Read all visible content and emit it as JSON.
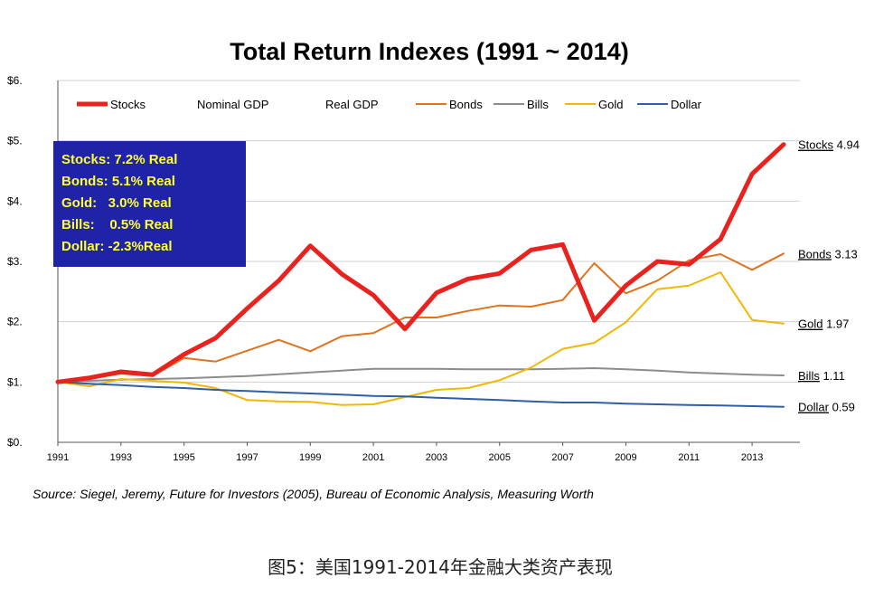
{
  "chart_data": {
    "type": "line",
    "title": "Total Return Indexes (1991 ~ 2014)",
    "y_ticks": [
      "$0.",
      "$1.",
      "$2.",
      "$3.",
      "$4.",
      "$5.",
      "$6."
    ],
    "ylim": [
      0,
      6
    ],
    "x_ticks": [
      "1991",
      "1993",
      "1995",
      "1997",
      "1999",
      "2001",
      "2003",
      "2005",
      "2007",
      "2009",
      "2011",
      "2013"
    ],
    "x": [
      1991,
      1992,
      1993,
      1994,
      1995,
      1996,
      1997,
      1998,
      1999,
      2000,
      2001,
      2002,
      2003,
      2004,
      2005,
      2006,
      2007,
      2008,
      2009,
      2010,
      2011,
      2012,
      2013,
      2014
    ],
    "xlim": [
      1991,
      2014
    ],
    "grid": "horizontal",
    "legend_position": "top",
    "legend": [
      {
        "name": "Stocks",
        "color": "#e8231f",
        "has_line": true
      },
      {
        "name": "Nominal GDP",
        "color": "",
        "has_line": false
      },
      {
        "name": "Real GDP",
        "color": "",
        "has_line": false
      },
      {
        "name": "Bonds",
        "color": "#e0731f",
        "has_line": true
      },
      {
        "name": "Bills",
        "color": "#8c8c8c",
        "has_line": true
      },
      {
        "name": "Gold",
        "color": "#f2b705",
        "has_line": true
      },
      {
        "name": "Dollar",
        "color": "#2f5fa7",
        "has_line": true
      }
    ],
    "series": [
      {
        "name": "Stocks",
        "color": "#e8231f",
        "width": 5,
        "end_label": "Stocks",
        "end_value": "4.94",
        "values": [
          1.0,
          1.07,
          1.17,
          1.12,
          1.46,
          1.73,
          2.22,
          2.68,
          3.26,
          2.79,
          2.44,
          1.88,
          2.48,
          2.71,
          2.8,
          3.19,
          3.28,
          2.02,
          2.6,
          3.0,
          2.95,
          3.37,
          4.45,
          4.94
        ]
      },
      {
        "name": "Bonds",
        "color": "#e0731f",
        "width": 2,
        "end_label": "Bonds",
        "end_value": "3.13",
        "values": [
          1.0,
          1.05,
          1.14,
          1.1,
          1.4,
          1.34,
          1.52,
          1.7,
          1.51,
          1.76,
          1.81,
          2.07,
          2.07,
          2.18,
          2.27,
          2.25,
          2.36,
          2.97,
          2.47,
          2.68,
          3.02,
          3.12,
          2.86,
          3.13
        ]
      },
      {
        "name": "Bills",
        "color": "#8c8c8c",
        "width": 2,
        "end_label": "Bills",
        "end_value": "1.11",
        "values": [
          1.0,
          1.02,
          1.04,
          1.05,
          1.06,
          1.08,
          1.1,
          1.13,
          1.16,
          1.19,
          1.22,
          1.22,
          1.22,
          1.21,
          1.21,
          1.21,
          1.22,
          1.23,
          1.21,
          1.19,
          1.16,
          1.14,
          1.12,
          1.11
        ]
      },
      {
        "name": "Gold",
        "color": "#f2b705",
        "width": 2,
        "end_label": "Gold",
        "end_value": "1.97",
        "values": [
          1.0,
          0.93,
          1.05,
          1.02,
          0.99,
          0.9,
          0.7,
          0.68,
          0.67,
          0.62,
          0.63,
          0.75,
          0.87,
          0.9,
          1.03,
          1.24,
          1.55,
          1.65,
          1.99,
          2.54,
          2.6,
          2.82,
          2.03,
          1.97
        ]
      },
      {
        "name": "Dollar",
        "color": "#2f5fa7",
        "width": 2,
        "end_label": "Dollar",
        "end_value": "0.59",
        "values": [
          1.0,
          0.97,
          0.95,
          0.92,
          0.9,
          0.87,
          0.85,
          0.83,
          0.81,
          0.79,
          0.77,
          0.76,
          0.74,
          0.72,
          0.7,
          0.68,
          0.66,
          0.66,
          0.64,
          0.63,
          0.62,
          0.61,
          0.6,
          0.59
        ]
      }
    ],
    "annotation_box": {
      "bg_color": "#1e23a8",
      "text_color": "#ffff33",
      "lines": [
        "Stocks: 7.2% Real",
        "Bonds: 5.1% Real",
        "Gold:   3.0% Real",
        "Bills:    0.5% Real",
        "Dollar: -2.3%Real"
      ]
    },
    "source": "Source: Siegel, Jeremy, Future for Investors (2005), Bureau of Economic Analysis, Measuring Worth"
  },
  "caption": "图5：美国1991-2014年金融大类资产表现"
}
